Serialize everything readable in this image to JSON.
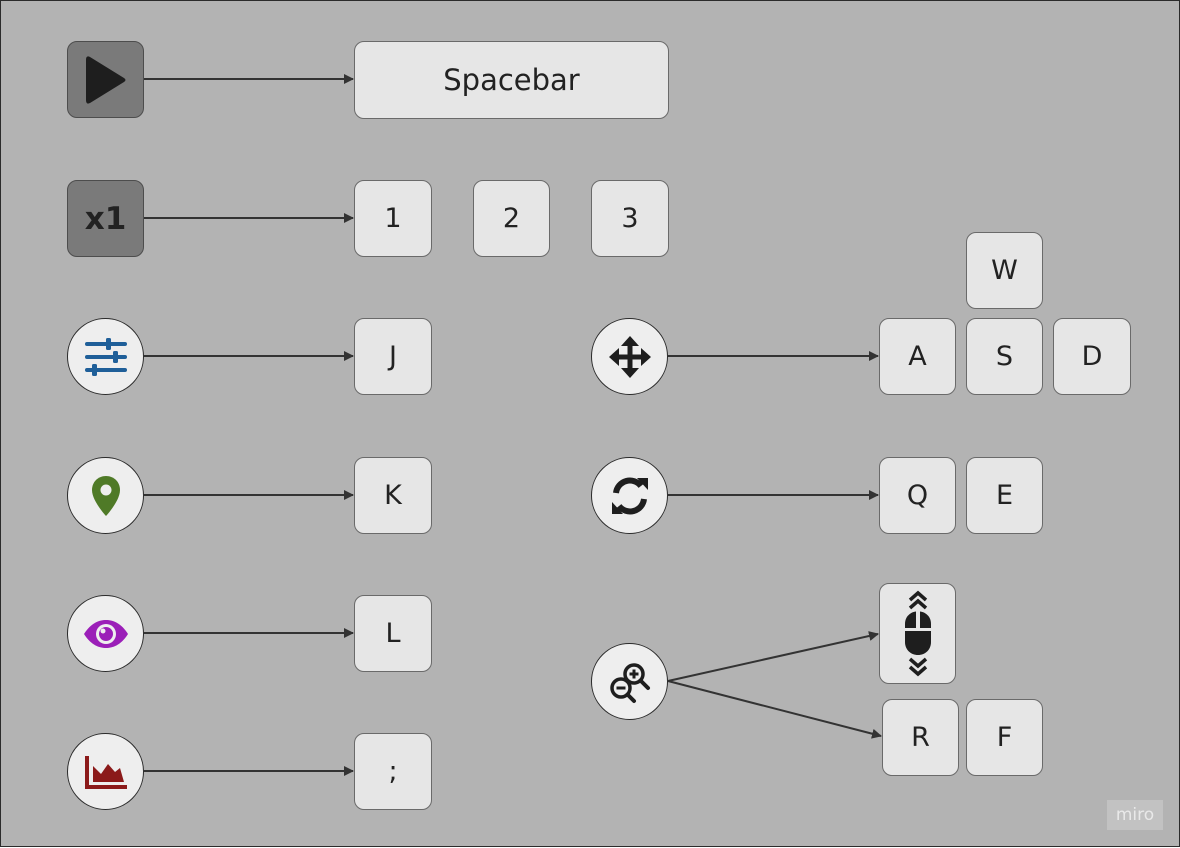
{
  "mappings": {
    "play": {
      "key": "Spacebar"
    },
    "speed": {
      "label": "x1",
      "keys": [
        "1",
        "2",
        "3"
      ]
    },
    "settings": {
      "key": "J"
    },
    "location": {
      "key": "K"
    },
    "view": {
      "key": "L"
    },
    "chart": {
      "key": ";"
    },
    "move": {
      "keys": {
        "up": "W",
        "left": "A",
        "down": "S",
        "right": "D"
      }
    },
    "rotate": {
      "keys": [
        "Q",
        "E"
      ]
    },
    "zoom": {
      "keys": [
        "R",
        "F"
      ]
    }
  },
  "icons": {
    "play": "play-icon",
    "settings": "sliders-icon",
    "location": "map-pin-icon",
    "view": "eye-icon",
    "chart": "area-chart-icon",
    "move": "move-arrows-icon",
    "rotate": "rotate-icon",
    "zoom": "zoom-in-out-icon",
    "mouse": "mouse-scroll-icon"
  },
  "colors": {
    "background": "#b3b3b3",
    "sliders": "#1f5f99",
    "pin": "#4f7a27",
    "eye": "#9b1fb8",
    "chart": "#8b1a1a"
  },
  "watermark": "miro"
}
